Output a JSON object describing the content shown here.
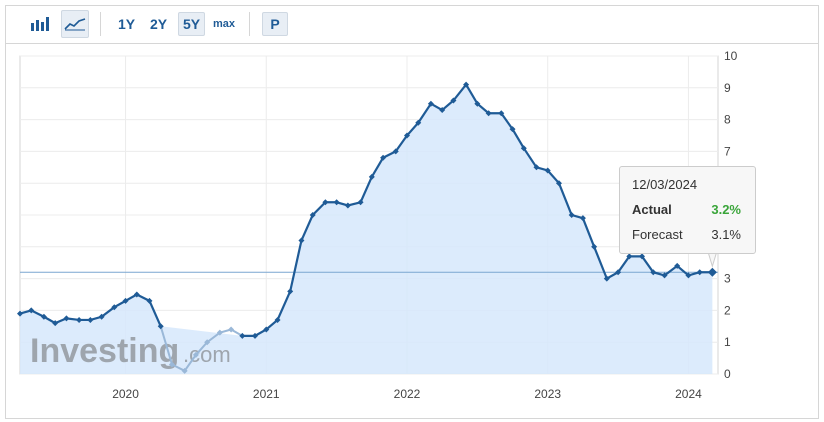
{
  "toolbar": {
    "ranges": [
      "1Y",
      "2Y",
      "5Y",
      "max"
    ],
    "selected_range": "5Y",
    "p_label": "P",
    "icons": [
      "bar-chart-icon",
      "area-chart-icon"
    ]
  },
  "watermark": {
    "brand": "Investing",
    "suffix": ".com"
  },
  "tooltip": {
    "date": "12/03/2024",
    "actual_label": "Actual",
    "actual_value": "3.2%",
    "forecast_label": "Forecast",
    "forecast_value": "3.1%"
  },
  "colors": {
    "line": "#1f5b96",
    "fill": "#d6e8fb",
    "actual_green": "#3aa53a",
    "forecast_line": "#9ab8d8"
  },
  "chart_data": {
    "type": "area",
    "title": "",
    "xlabel": "",
    "ylabel": "",
    "ylim": [
      0,
      10
    ],
    "x_range": [
      2019.25,
      2024.21
    ],
    "y_ticks": [
      "0",
      "1",
      "2",
      "3",
      "4",
      "5",
      "6",
      "7",
      "8",
      "9",
      "10"
    ],
    "x_ticks": [
      {
        "label": "2020",
        "x": 2020.0
      },
      {
        "label": "2021",
        "x": 2021.0
      },
      {
        "label": "2022",
        "x": 2022.0
      },
      {
        "label": "2023",
        "x": 2023.0
      },
      {
        "label": "2024",
        "x": 2024.0
      }
    ],
    "grid": true,
    "reference_line": 3.2,
    "series": [
      {
        "x": [
          2019.25,
          2019.33,
          2019.42,
          2019.5,
          2019.58,
          2019.67,
          2019.75,
          2019.83,
          2019.92,
          2020.0,
          2020.08,
          2020.17,
          2020.25,
          2020.83,
          2020.92,
          2021.0,
          2021.08,
          2021.17,
          2021.25,
          2021.33,
          2021.42,
          2021.5,
          2021.58,
          2021.67,
          2021.75,
          2021.83,
          2021.92,
          2022.0,
          2022.08,
          2022.17,
          2022.25,
          2022.33,
          2022.42,
          2022.5,
          2022.58,
          2022.67,
          2022.75,
          2022.83,
          2022.92,
          2023.0,
          2023.08,
          2023.17,
          2023.25,
          2023.33,
          2023.42,
          2023.5,
          2023.58,
          2023.67,
          2023.75,
          2023.83,
          2023.92,
          2024.0,
          2024.08,
          2024.17
        ],
        "y": [
          1.9,
          2.0,
          1.8,
          1.6,
          1.75,
          1.7,
          1.7,
          1.8,
          2.1,
          2.3,
          2.5,
          2.3,
          1.5,
          1.2,
          1.2,
          1.4,
          1.7,
          2.6,
          4.2,
          5.0,
          5.4,
          5.4,
          5.3,
          5.4,
          6.2,
          6.8,
          7.0,
          7.5,
          7.9,
          8.5,
          8.3,
          8.6,
          9.1,
          8.5,
          8.2,
          8.2,
          7.7,
          7.1,
          6.5,
          6.4,
          6.0,
          5.0,
          4.9,
          4.0,
          3.0,
          3.2,
          3.7,
          3.7,
          3.2,
          3.1,
          3.4,
          3.1,
          3.2,
          3.2
        ]
      },
      {
        "x": [
          2020.25,
          2020.33,
          2020.42,
          2020.5,
          2020.58,
          2020.67,
          2020.75,
          2020.83
        ],
        "y": [
          1.5,
          0.3,
          0.1,
          0.6,
          1.0,
          1.3,
          1.4,
          1.2
        ]
      }
    ]
  }
}
